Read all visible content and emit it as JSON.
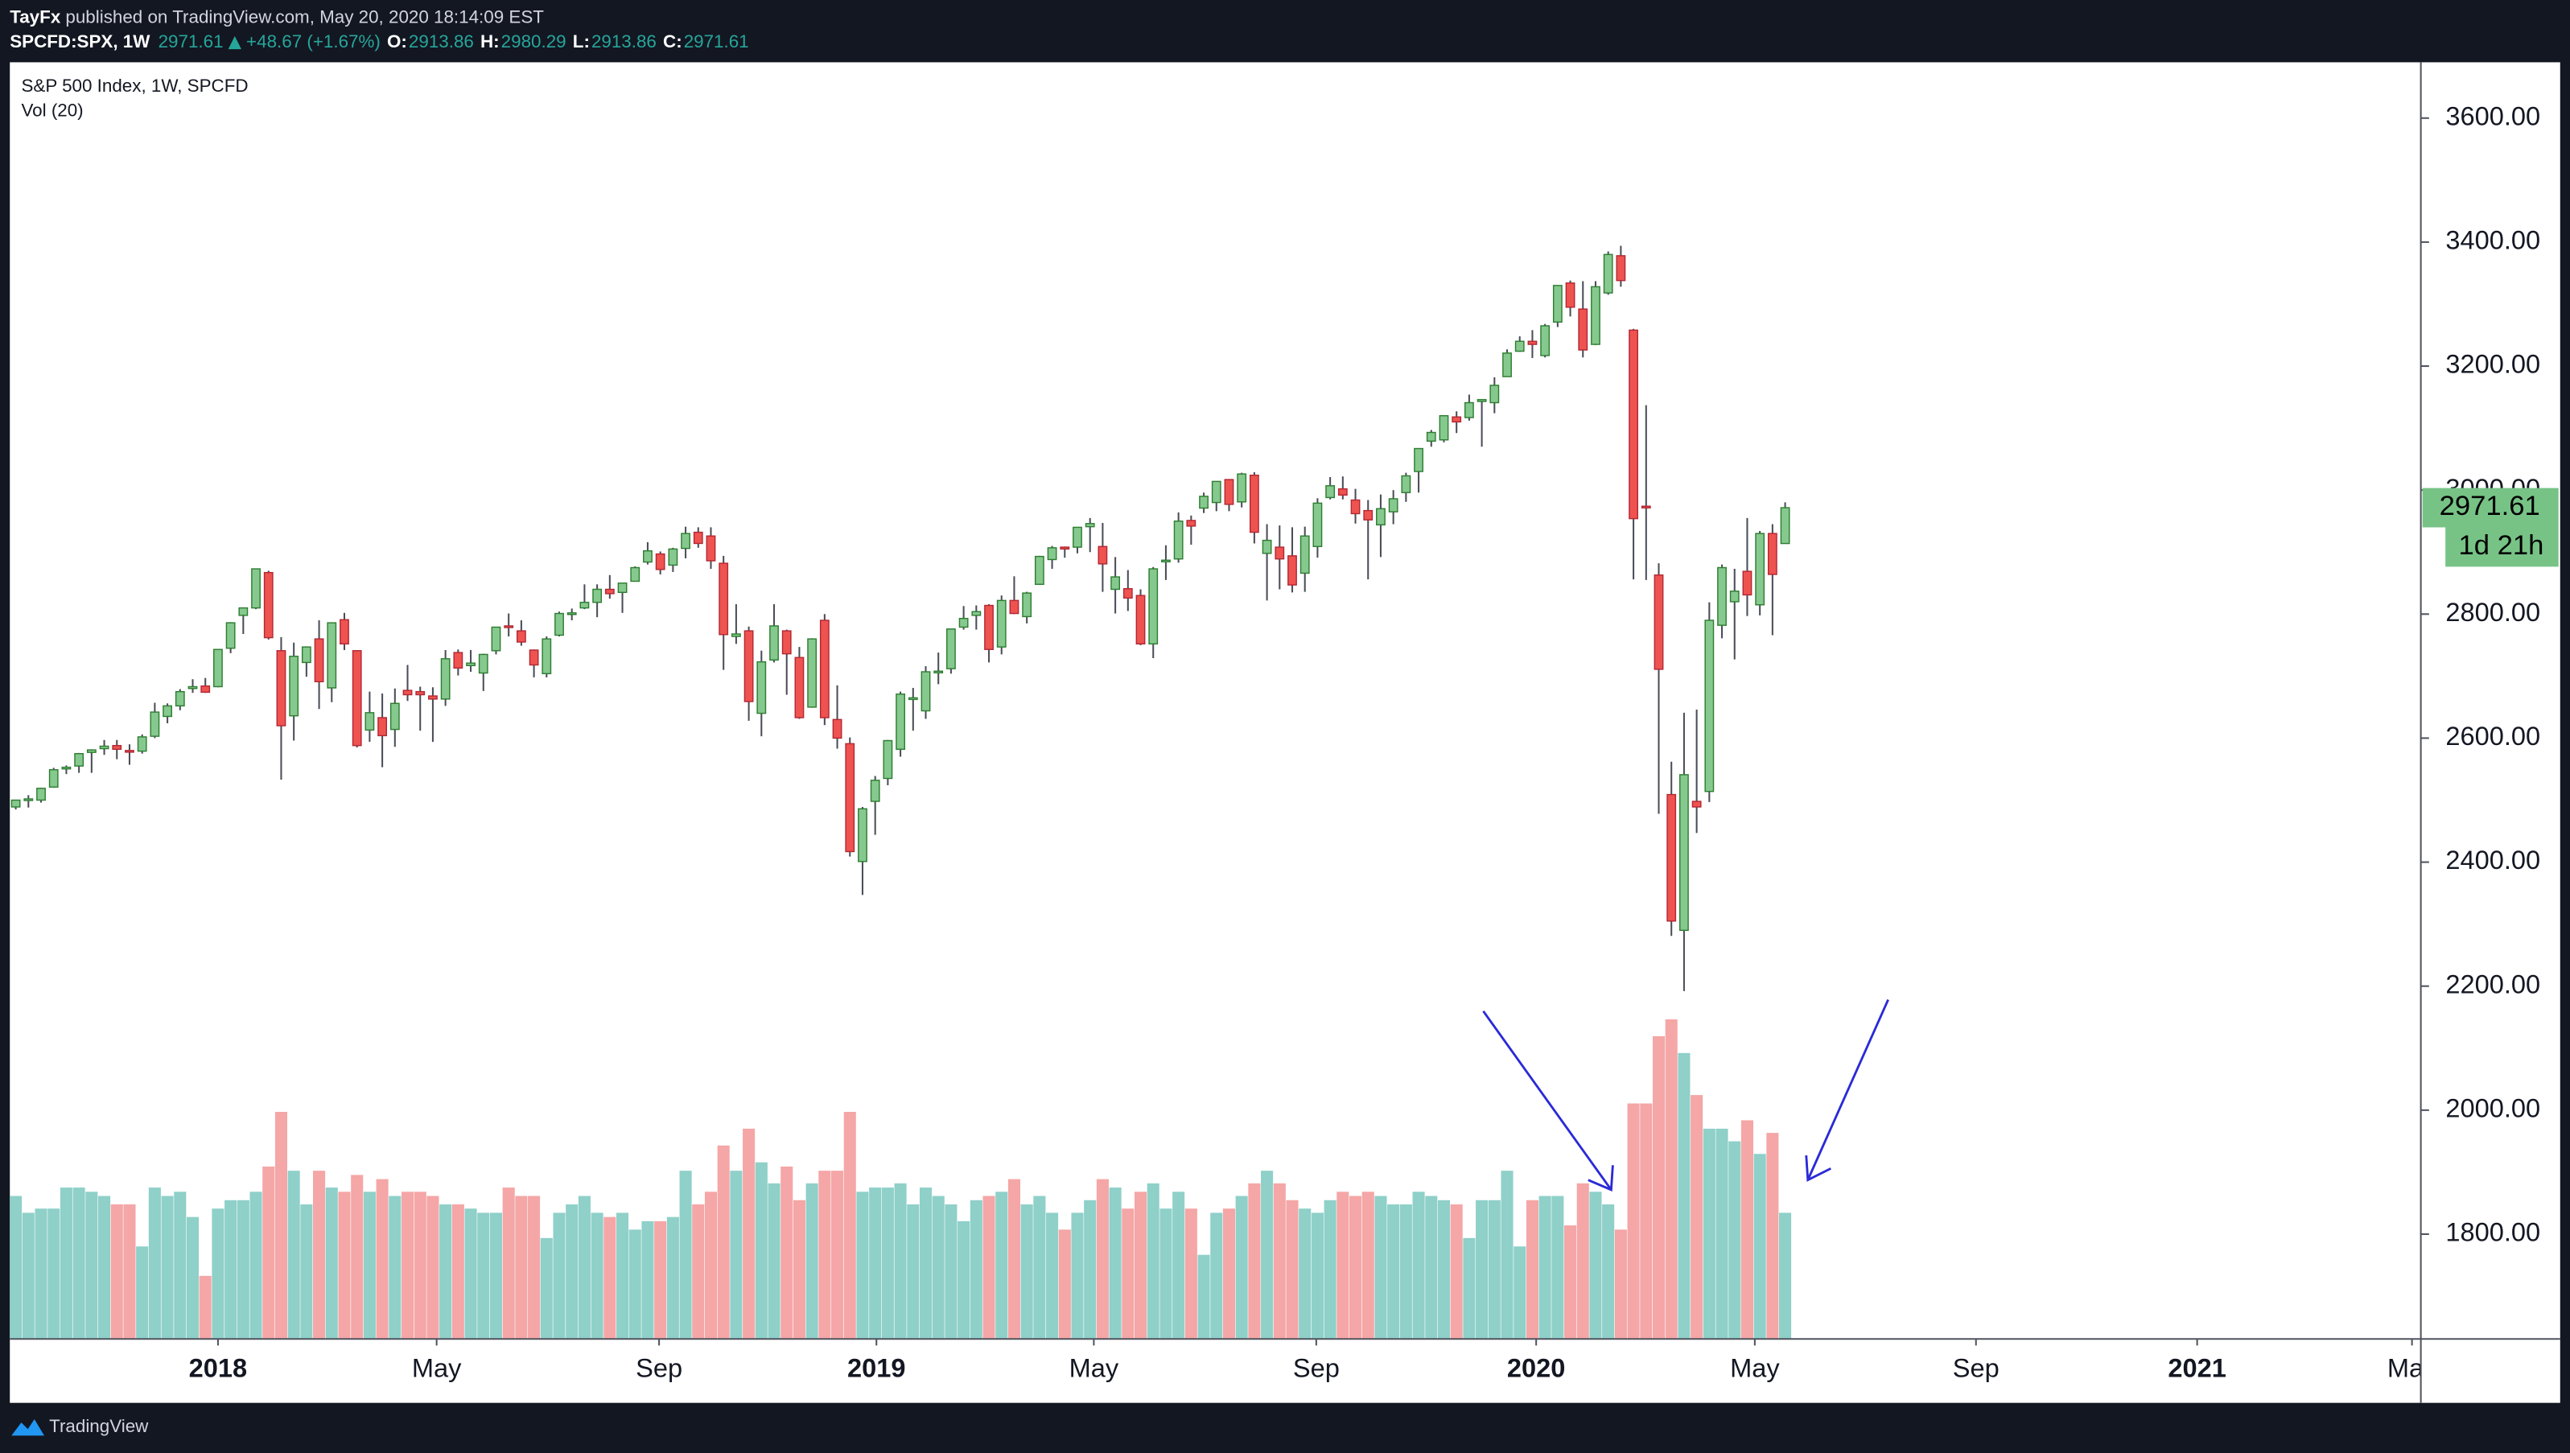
{
  "header": {
    "author": "TayFx",
    "published": "published on TradingView.com, May 20, 2020 18:14:09 EST",
    "symbol": "SPCFD:SPX, 1W",
    "change": "+48.67 (+1.67%)",
    "ohlc_labels": [
      "O:",
      "H:",
      "L:",
      "C:"
    ]
  },
  "chart_data": {
    "type": "candlestick",
    "title": "S&P 500 Index, 1W, SPCFD",
    "volume_label": "Vol (20)",
    "countdown": "1d 21h",
    "open": [
      2489,
      2501,
      2500,
      2521,
      2551,
      2555,
      2577,
      2583,
      2588,
      2580,
      2579,
      2603,
      2635,
      2652,
      2680,
      2684,
      2683,
      2745,
      2798,
      2810,
      2867,
      2741,
      2636,
      2722,
      2760,
      2681,
      2791,
      2741,
      2613,
      2633,
      2614,
      2677,
      2675,
      2668,
      2663,
      2738,
      2717,
      2705,
      2741,
      2781,
      2773,
      2742,
      2704,
      2766,
      2800,
      2810,
      2819,
      2840,
      2835,
      2853,
      2884,
      2897,
      2879,
      2906,
      2932,
      2926,
      2882,
      2764,
      2773,
      2640,
      2726,
      2773,
      2730,
      2650,
      2790,
      2630,
      2591,
      2401,
      2498,
      2535,
      2582,
      2664,
      2644,
      2706,
      2712,
      2779,
      2798,
      2814,
      2747,
      2822,
      2796,
      2848,
      2888,
      2908,
      2908,
      2941,
      2909,
      2840,
      2841,
      2830,
      2752,
      2886,
      2889,
      2951,
      2971,
      2980,
      3017,
      2981,
      3024,
      2898,
      2908,
      2894,
      2866,
      2909,
      2988,
      3002,
      2984,
      2967,
      2944,
      2965,
      2996,
      3030,
      3079,
      3081,
      3118,
      3117,
      3143,
      3141,
      3183,
      3224,
      3240,
      3217,
      3271,
      3334,
      3292,
      3235,
      3318,
      3378,
      3258,
      2974,
      2863,
      2509,
      2290,
      2498,
      2514,
      2782,
      2820,
      2869,
      2815,
      2930,
      2913.86
    ],
    "high": [
      2500,
      2508,
      2520,
      2552,
      2556,
      2576,
      2582,
      2597,
      2597,
      2590,
      2606,
      2657,
      2656,
      2679,
      2695,
      2697,
      2743,
      2787,
      2810,
      2873,
      2870,
      2763,
      2754,
      2748,
      2790,
      2786,
      2802,
      2742,
      2675,
      2672,
      2680,
      2718,
      2683,
      2682,
      2742,
      2743,
      2742,
      2736,
      2779,
      2801,
      2790,
      2743,
      2764,
      2804,
      2809,
      2848,
      2848,
      2863,
      2850,
      2877,
      2916,
      2901,
      2907,
      2941,
      2940,
      2940,
      2894,
      2816,
      2780,
      2741,
      2816,
      2775,
      2747,
      2761,
      2800,
      2685,
      2601,
      2489,
      2539,
      2597,
      2675,
      2681,
      2716,
      2738,
      2776,
      2813,
      2814,
      2816,
      2830,
      2861,
      2836,
      2894,
      2910,
      2909,
      2940,
      2955,
      2947,
      2892,
      2871,
      2840,
      2876,
      2911,
      2964,
      2959,
      2996,
      3014,
      3017,
      3028,
      3029,
      2945,
      2943,
      2940,
      2941,
      2987,
      3021,
      3022,
      3002,
      2984,
      2993,
      3000,
      3028,
      3067,
      3097,
      3120,
      3127,
      3154,
      3146,
      3182,
      3227,
      3248,
      3258,
      3268,
      3330,
      3338,
      3337,
      3337,
      3385,
      3394,
      3260,
      3137,
      2882,
      2562,
      2641,
      2646,
      2819,
      2880,
      2873,
      2955,
      2934,
      2945,
      2980.29
    ],
    "low": [
      2485,
      2488,
      2496,
      2520,
      2542,
      2544,
      2544,
      2573,
      2566,
      2557,
      2575,
      2600,
      2624,
      2645,
      2673,
      2673,
      2682,
      2737,
      2768,
      2808,
      2759,
      2533,
      2596,
      2699,
      2647,
      2658,
      2742,
      2585,
      2594,
      2553,
      2586,
      2660,
      2612,
      2594,
      2652,
      2701,
      2707,
      2676,
      2735,
      2764,
      2749,
      2698,
      2698,
      2764,
      2790,
      2808,
      2795,
      2825,
      2802,
      2853,
      2880,
      2864,
      2868,
      2890,
      2907,
      2873,
      2710,
      2752,
      2628,
      2603,
      2722,
      2670,
      2631,
      2649,
      2621,
      2583,
      2409,
      2347,
      2444,
      2524,
      2570,
      2612,
      2631,
      2687,
      2704,
      2775,
      2775,
      2722,
      2735,
      2800,
      2785,
      2848,
      2873,
      2891,
      2898,
      2900,
      2836,
      2801,
      2805,
      2750,
      2729,
      2855,
      2883,
      2912,
      2963,
      2966,
      2966,
      2972,
      2914,
      2822,
      2840,
      2835,
      2836,
      2891,
      2985,
      2985,
      2946,
      2856,
      2892,
      2945,
      2981,
      2996,
      3070,
      3077,
      3092,
      3112,
      3070,
      3124,
      3183,
      3223,
      3213,
      3214,
      3263,
      3280,
      3214,
      3234,
      3315,
      3328,
      2856,
      2855,
      2478,
      2281,
      2192,
      2447,
      2497,
      2761,
      2727,
      2797,
      2798,
      2766,
      2913.86
    ],
    "close": [
      2500,
      2502,
      2519,
      2549,
      2553,
      2575,
      2581,
      2587,
      2582,
      2578,
      2602,
      2642,
      2652,
      2675,
      2683,
      2674,
      2743,
      2786,
      2810,
      2873,
      2762,
      2620,
      2732,
      2747,
      2691,
      2786,
      2752,
      2588,
      2641,
      2604,
      2656,
      2670,
      2670,
      2663,
      2728,
      2713,
      2721,
      2735,
      2779,
      2780,
      2755,
      2718,
      2760,
      2801,
      2802,
      2819,
      2840,
      2833,
      2850,
      2875,
      2902,
      2872,
      2905,
      2930,
      2914,
      2886,
      2767,
      2768,
      2659,
      2723,
      2781,
      2736,
      2633,
      2760,
      2633,
      2600,
      2417,
      2486,
      2532,
      2596,
      2671,
      2665,
      2707,
      2708,
      2776,
      2793,
      2804,
      2743,
      2822,
      2801,
      2834,
      2893,
      2907,
      2905,
      2940,
      2946,
      2881,
      2860,
      2826,
      2752,
      2873,
      2887,
      2950,
      2942,
      2990,
      3014,
      2977,
      3026,
      2932,
      2919,
      2889,
      2847,
      2926,
      2979,
      3007,
      2992,
      2962,
      2952,
      2970,
      2986,
      3023,
      3067,
      3093,
      3120,
      3110,
      3141,
      3146,
      3169,
      3221,
      3240,
      3235,
      3265,
      3330,
      3295,
      3226,
      3328,
      3380,
      3338,
      2954,
      2972,
      2711,
      2305,
      2541,
      2489,
      2790,
      2875,
      2837,
      2831,
      2930,
      2864,
      2971.61
    ],
    "volume": [
      17,
      15,
      15.5,
      15.5,
      18,
      18,
      17.5,
      17,
      16,
      16,
      11,
      18,
      17,
      17.5,
      14.5,
      7.5,
      15.5,
      16.5,
      16.5,
      17.5,
      20.5,
      27,
      20,
      16,
      20,
      18,
      17.5,
      19.5,
      17.5,
      19,
      17,
      17.5,
      17.5,
      17,
      16,
      16,
      15.5,
      15,
      15,
      18,
      17,
      17,
      12,
      15,
      16,
      17,
      15,
      14.5,
      15,
      13,
      14,
      14,
      14.5,
      20,
      16,
      17.5,
      23,
      20,
      25,
      21,
      18.5,
      20.5,
      16.5,
      18.5,
      20,
      20,
      27,
      17.5,
      18,
      18,
      18.5,
      16,
      18,
      17,
      16,
      14,
      16.5,
      17,
      17.5,
      19,
      16,
      17,
      15,
      13,
      15,
      16.5,
      19,
      18,
      15.5,
      17.5,
      18.5,
      15.5,
      17.5,
      15.5,
      10,
      15,
      15.5,
      17,
      18.5,
      20,
      18.5,
      16.5,
      15.5,
      15,
      16.5,
      17.5,
      17,
      17.5,
      17,
      16,
      16,
      17.5,
      17,
      16.5,
      16,
      12,
      16.5,
      16.5,
      20,
      11,
      16.5,
      17,
      17,
      13.5,
      18.5,
      17.5,
      16,
      13,
      28,
      28,
      36,
      38,
      34,
      29,
      25,
      25,
      23.5,
      26,
      22,
      24.5,
      15
    ],
    "up_color": "#86c98e",
    "up_border_color": "#2e7d32",
    "down_color": "#ef5350",
    "down_border_color": "#b22833",
    "wick_color": "#4a4d57",
    "volume_up_color": "#8fd0c9",
    "volume_down_color": "#f5a6a6",
    "last_price_color": "#77c386",
    "xlim": [
      -0.47,
      190.3
    ],
    "xticks": [
      {
        "value": 16,
        "label": "2018"
      },
      {
        "value": 33.3,
        "label": "May"
      },
      {
        "value": 50.9,
        "label": "Sep"
      },
      {
        "value": 68.1,
        "label": "2019"
      },
      {
        "value": 85.3,
        "label": "May"
      },
      {
        "value": 102.9,
        "label": "Sep"
      },
      {
        "value": 120.3,
        "label": "2020"
      },
      {
        "value": 137.6,
        "label": "May"
      },
      {
        "value": 155.1,
        "label": "Sep"
      },
      {
        "value": 172.6,
        "label": "2021"
      },
      {
        "value": 189.6,
        "label": "May"
      }
    ],
    "ylim": [
      1631,
      3690
    ],
    "yticks": [
      {
        "value": 1800,
        "label": "1800.00"
      },
      {
        "value": 2000,
        "label": "2000.00"
      },
      {
        "value": 2200,
        "label": "2200.00"
      },
      {
        "value": 2400,
        "label": "2400.00"
      },
      {
        "value": 2600,
        "label": "2600.00"
      },
      {
        "value": 2800,
        "label": "2800.00"
      },
      {
        "value": 3000,
        "label": "3000.00"
      },
      {
        "value": 3200,
        "label": "3200.00"
      },
      {
        "value": 3400,
        "label": "3400.00"
      },
      {
        "value": 3600,
        "label": "3600.00"
      }
    ]
  },
  "footer": {
    "brand": "TradingView"
  }
}
